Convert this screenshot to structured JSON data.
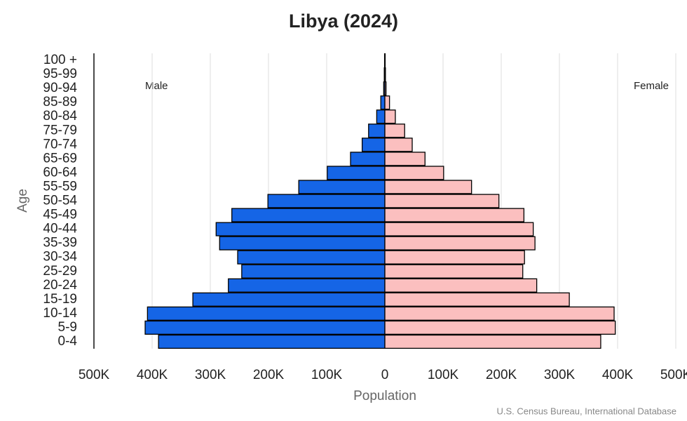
{
  "chart_data": {
    "type": "pyramid",
    "title": "Libya (2024)",
    "x_label": "Population",
    "y_label": "Age",
    "source": "U.S. Census Bureau, International Database",
    "categories": [
      "0-4",
      "5-9",
      "10-14",
      "15-19",
      "20-24",
      "25-29",
      "30-34",
      "35-39",
      "40-44",
      "45-49",
      "50-54",
      "55-59",
      "60-64",
      "65-69",
      "70-74",
      "75-79",
      "80-84",
      "85-89",
      "90-94",
      "95-99",
      "100 +"
    ],
    "series": [
      {
        "name": "Male",
        "color": "#1565e6",
        "values": [
          -389000,
          -412000,
          -408000,
          -330000,
          -269000,
          -246000,
          -253000,
          -284000,
          -290000,
          -263000,
          -201000,
          -148000,
          -99000,
          -59000,
          -39000,
          -28000,
          -14000,
          -7000,
          -2000,
          -1000,
          -500
        ]
      },
      {
        "name": "Female",
        "color": "#fbbfbf",
        "values": [
          371000,
          396000,
          394000,
          317000,
          261000,
          237000,
          240000,
          258000,
          255000,
          239000,
          196000,
          149000,
          101000,
          69000,
          47000,
          34000,
          18000,
          8000,
          2000,
          1000,
          500
        ]
      }
    ],
    "xlim": [
      -500000,
      500000
    ],
    "xticks": [
      {
        "value": -500000,
        "label": "500K"
      },
      {
        "value": -400000,
        "label": "400K"
      },
      {
        "value": -300000,
        "label": "300K"
      },
      {
        "value": -200000,
        "label": "200K"
      },
      {
        "value": -100000,
        "label": "100K"
      },
      0,
      {
        "value": 100000,
        "label": "100K"
      },
      {
        "value": 200000,
        "label": "200K"
      },
      {
        "value": 300000,
        "label": "300K"
      },
      {
        "value": 400000,
        "label": "400K"
      },
      {
        "value": 500000,
        "label": "500K"
      }
    ],
    "grid": true
  }
}
